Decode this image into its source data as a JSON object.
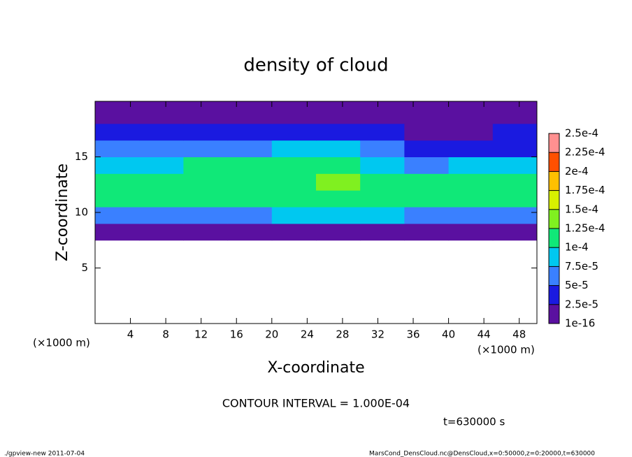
{
  "chart_data": {
    "type": "heatmap",
    "title": "density of cloud",
    "x_label": "X-coordinate",
    "y_label": "Z-coordinate",
    "x_unit": "(×1000 m)",
    "y_unit": "(×1000 m)",
    "contour_note": "CONTOUR INTERVAL = 1.000E-04",
    "time_note": "t=630000 s",
    "footer_left": "./gpview-new  2011-07-04",
    "footer_right": "MarsCond_DensCloud.nc@DensCloud,x=0:50000,z=0:20000,t=630000",
    "xlim": [
      0,
      50
    ],
    "ylim": [
      0,
      20
    ],
    "xticks": [
      4,
      8,
      12,
      16,
      20,
      24,
      28,
      32,
      36,
      40,
      44,
      48
    ],
    "yticks": [
      5,
      10,
      15
    ],
    "x_edges": [
      0,
      5,
      10,
      15,
      20,
      25,
      30,
      35,
      40,
      45,
      50
    ],
    "z_edges": [
      7.5,
      9,
      10.5,
      12,
      13.5,
      15,
      16.5,
      18,
      20
    ],
    "values": [
      [
        2e-05,
        2e-05,
        2e-05,
        2e-05,
        2e-05,
        2e-05,
        2e-05,
        2e-05,
        2e-05,
        2e-05
      ],
      [
        6e-05,
        6e-05,
        6.5e-05,
        7e-05,
        7.5e-05,
        8e-05,
        7.5e-05,
        6.5e-05,
        6e-05,
        6e-05
      ],
      [
        0.000105,
        0.000105,
        0.00011,
        0.00011,
        0.000115,
        0.00012,
        0.00011,
        0.000105,
        0.000105,
        0.0001
      ],
      [
        0.00011,
        0.00011,
        0.00011,
        0.00011,
        0.00012,
        0.00013,
        0.00012,
        0.00011,
        0.00011,
        0.000105
      ],
      [
        9e-05,
        9.5e-05,
        0.0001,
        0.0001,
        0.000105,
        0.00011,
        8e-05,
        6e-05,
        8e-05,
        8.5e-05
      ],
      [
        5e-05,
        5.5e-05,
        6e-05,
        7e-05,
        8e-05,
        8e-05,
        5e-05,
        3e-05,
        4e-05,
        4e-05
      ],
      [
        3e-05,
        3e-05,
        3e-05,
        3.5e-05,
        4e-05,
        4e-05,
        3e-05,
        2e-05,
        2e-05,
        2.5e-05
      ],
      [
        1e-05,
        1e-05,
        1e-05,
        1.5e-05,
        2e-05,
        2e-05,
        1.5e-05,
        1.5e-05,
        1.5e-05,
        1e-05
      ]
    ],
    "colorbar_ticks": [
      {
        "value": 1e-16,
        "label": "1e-16"
      },
      {
        "value": 2.5e-05,
        "label": "2.5e-5"
      },
      {
        "value": 5e-05,
        "label": "5e-5"
      },
      {
        "value": 7.5e-05,
        "label": "7.5e-5"
      },
      {
        "value": 0.0001,
        "label": "1e-4"
      },
      {
        "value": 0.000125,
        "label": "1.25e-4"
      },
      {
        "value": 0.00015,
        "label": "1.5e-4"
      },
      {
        "value": 0.000175,
        "label": "1.75e-4"
      },
      {
        "value": 0.0002,
        "label": "2e-4"
      },
      {
        "value": 0.000225,
        "label": "2.25e-4"
      },
      {
        "value": 0.00025,
        "label": "2.5e-4"
      }
    ],
    "colors": [
      "#5a10a0",
      "#1a1ae0",
      "#3a80ff",
      "#00c8f0",
      "#10e878",
      "#80f020",
      "#d8f000",
      "#ffc000",
      "#ff5000",
      "#ff9090"
    ]
  }
}
